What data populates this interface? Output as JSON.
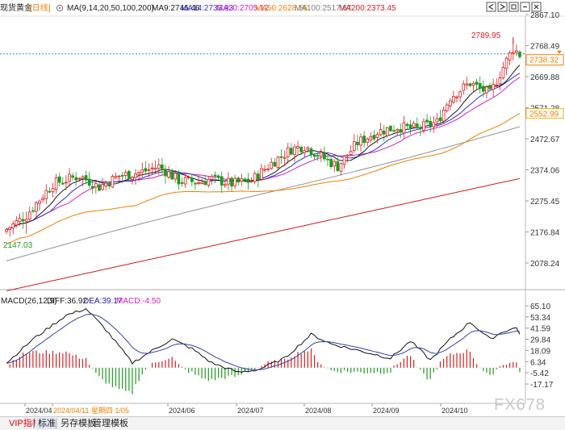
{
  "header": {
    "instrument": "现货黄金",
    "period": "[日线]",
    "ma_title": "MA(9,14,20,50,100,200)",
    "ma_values": [
      {
        "text": "MA9:2746.46",
        "color": "#1a1a1a"
      },
      {
        "text": "MA14:2733.93",
        "color": "#3333cc"
      },
      {
        "text": "MA20:2705.12",
        "color": "#d020c0"
      },
      {
        "text": "MA50:2628.56",
        "color": "#f08000"
      },
      {
        "text": "MA100:2517.67",
        "color": "#808080"
      },
      {
        "text": "MA200:2373.45",
        "color": "#d02020"
      }
    ]
  },
  "macd_header": {
    "title": "MACD(26,12,9)",
    "diff": "DIFF:36.92",
    "dea": "DEA:39.17",
    "macd": "MACD:-4.50"
  },
  "chart_data": {
    "type": "candlestick",
    "price_axis": {
      "ticks": [
        "2867.10",
        "2768.49",
        "2669.88",
        "2571.28",
        "2472.67",
        "2374.06",
        "2275.45",
        "2176.84",
        "2078.24"
      ]
    },
    "macd_axis": {
      "ticks": [
        "65.10",
        "53.34",
        "41.59",
        "29.84",
        "18.09",
        "6.34",
        "-5.42",
        "-17.17"
      ]
    },
    "x_axis": {
      "labels": [
        "2024/04",
        "2024/04/11 星期四 1/05",
        "2024/06",
        "2024/07",
        "2024/08",
        "2024/09",
        "2024/10"
      ]
    },
    "annotations": {
      "high": "2789.95",
      "low": "2147.03",
      "current": "2738.32",
      "ma50_marker": "2552.99"
    }
  },
  "watermark": "FX678",
  "colors": {
    "up": "#d81e1e",
    "down": "#1e9a1e"
  },
  "toolbar_icons": [
    "back-icon",
    "forward-icon",
    "square-icon",
    "minus-icon",
    "close-icon"
  ],
  "tabs": {
    "vip": "VIP指标",
    "standard": "标准",
    "save": "另存模板",
    "manage": "管理模板"
  }
}
